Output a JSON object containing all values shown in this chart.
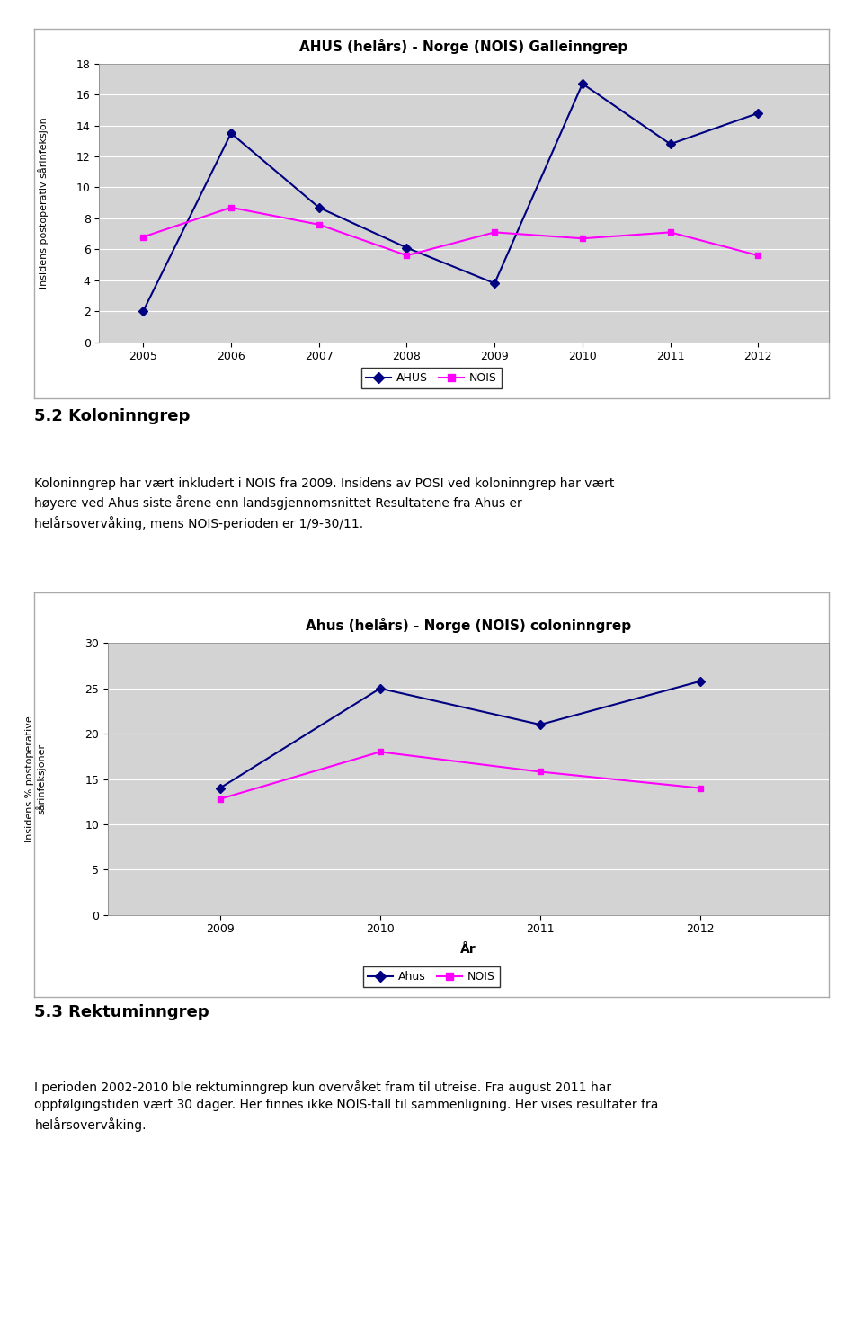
{
  "chart1": {
    "title": "AHUS (helårs) - Norge (NOIS) Galleinngrep",
    "years": [
      2005,
      2006,
      2007,
      2008,
      2009,
      2010,
      2011,
      2012
    ],
    "ahus_values": [
      2.0,
      13.5,
      8.7,
      6.1,
      3.8,
      16.7,
      12.8,
      14.8
    ],
    "nois_values": [
      6.8,
      8.7,
      7.6,
      5.6,
      7.1,
      6.7,
      7.1,
      5.6
    ],
    "ylabel": "insidens postoperativ sårinfeksjon",
    "ylim": [
      0,
      18
    ],
    "yticks": [
      0,
      2,
      4,
      6,
      8,
      10,
      12,
      14,
      16,
      18
    ],
    "ahus_color": "#000080",
    "nois_color": "#FF00FF",
    "legend_ahus": "AHUS",
    "legend_nois": "NOIS"
  },
  "text1_heading": "5.2 Koloninngrep",
  "text1_body": "Koloninngrep har vært inkludert i NOIS fra 2009. Insidens av POSI ved koloninngrep har vært\nhøyere ved Ahus siste årene enn landsgjennomsnittet Resultatene fra Ahus er\nhelårsovervåking, mens NOIS-perioden er 1/9-30/11.",
  "chart2": {
    "title": "Ahus (helårs) - Norge (NOIS) coloninngrep",
    "years": [
      2009,
      2010,
      2011,
      2012
    ],
    "ahus_values": [
      14.0,
      25.0,
      21.0,
      25.8
    ],
    "nois_values": [
      12.8,
      18.0,
      15.8,
      14.0
    ],
    "ylabel": "Insidens % postoperative\nsårinfeksjoner",
    "xlabel": "År",
    "ylim": [
      0,
      30
    ],
    "yticks": [
      0,
      5,
      10,
      15,
      20,
      25,
      30
    ],
    "ahus_color": "#000080",
    "nois_color": "#FF00FF",
    "legend_ahus": "Ahus",
    "legend_nois": "NOIS"
  },
  "text2_heading": "5.3 Rektuminngrep",
  "text2_body": "I perioden 2002-2010 ble rektuminngrep kun overvåket fram til utreise. Fra august 2011 har\noppfølgingstiden vært 30 dager. Her finnes ikke NOIS-tall til sammenligning. Her vises resultater fra\nhelårsovervåking.",
  "plot_bg": "#d3d3d3",
  "frame_bg": "#ffffff"
}
